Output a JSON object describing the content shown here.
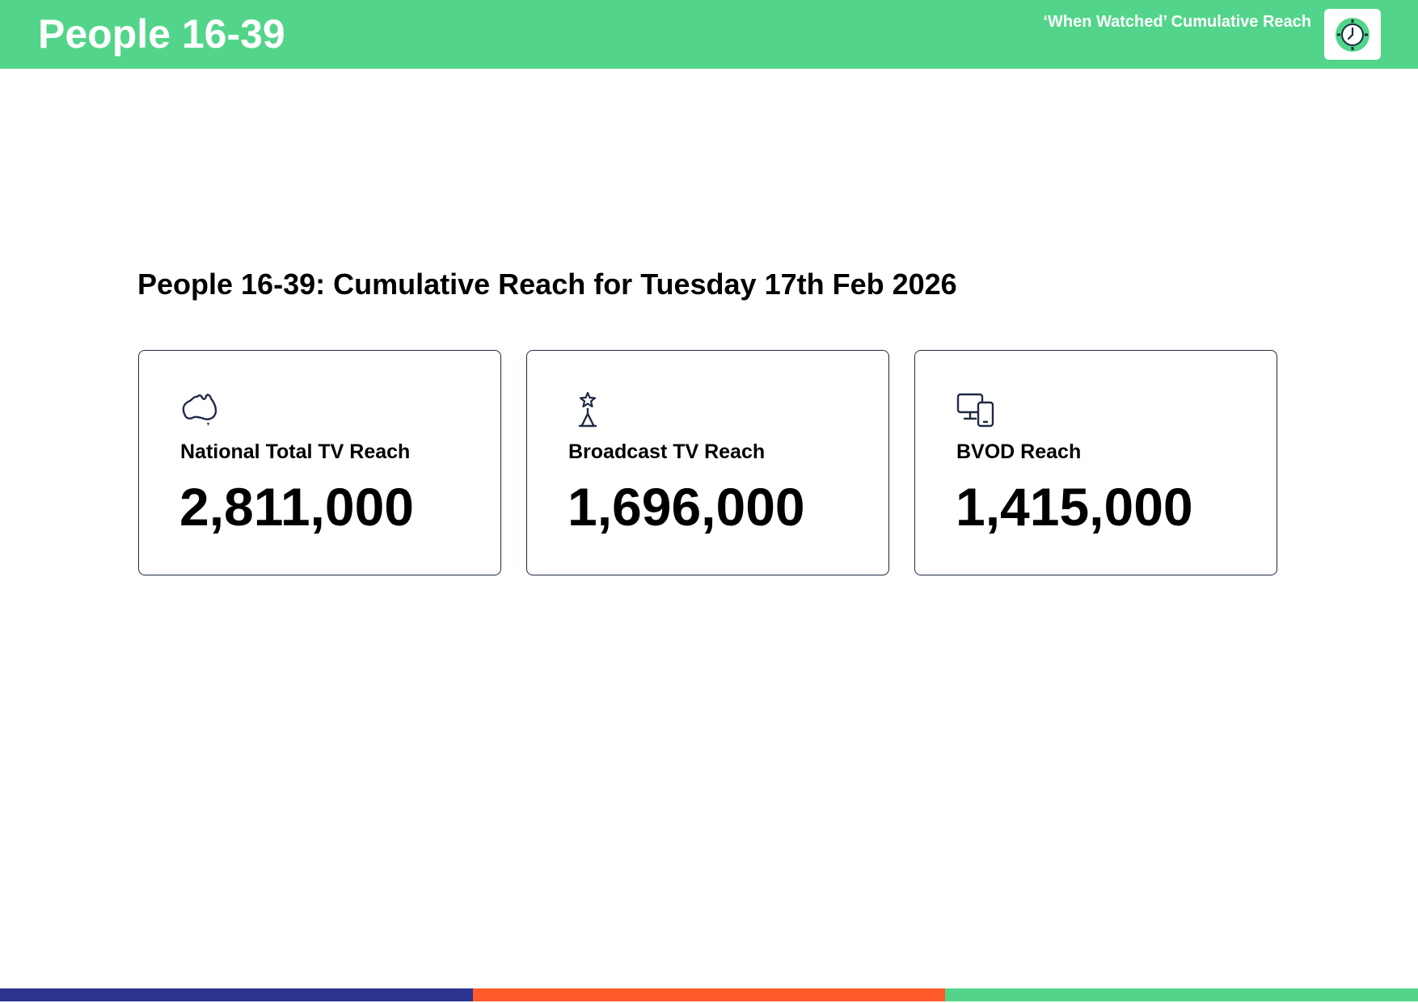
{
  "header": {
    "title": "People 16-39",
    "subtitle": "‘When Watched’ Cumulative Reach",
    "logo_icon": "clock-icon",
    "color": "#52d58a"
  },
  "main": {
    "title": "People 16-39: Cumulative Reach for Tuesday 17th Feb 2026"
  },
  "cards": [
    {
      "icon": "australia-map-icon",
      "label": "National Total TV Reach",
      "value": "2,811,000"
    },
    {
      "icon": "broadcast-tower-icon",
      "label": "Broadcast TV Reach",
      "value": "1,696,000"
    },
    {
      "icon": "devices-icon",
      "label": "BVOD Reach",
      "value": "1,415,000"
    }
  ],
  "footer": {
    "colors": [
      "#2b3590",
      "#ff5a2a",
      "#52d58a"
    ]
  }
}
